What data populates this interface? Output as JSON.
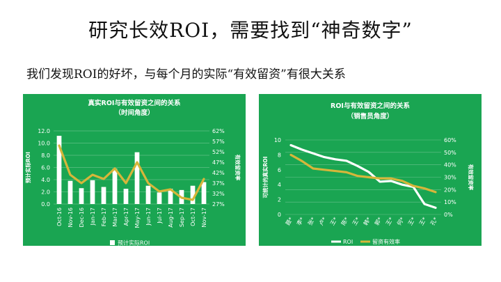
{
  "slide": {
    "title": "研究长效ROI，需要找到“神奇数字”",
    "subtitle": "我们发现ROI的好坏，与每个月的实际“有效留资”有很大关系"
  },
  "colors": {
    "panel_bg": "#1aa552",
    "bar": "#ffffff",
    "rate_line": "#d6b63a",
    "roi_line": "#ffffff",
    "grid": "#ffffff"
  },
  "chart_data": [
    {
      "type": "bar",
      "title": "真实ROI与有效留资之间的关系",
      "subtitle": "（时间角度）",
      "ylabel": "预计实际ROI",
      "y2label": "有效留资率",
      "ylim": [
        0,
        12
      ],
      "yticks": [
        "0.0",
        "2.0",
        "4.0",
        "6.0",
        "8.0",
        "10.0",
        "12.0"
      ],
      "y2lim": [
        27,
        62
      ],
      "y2ticks": [
        "27%",
        "32%",
        "37%",
        "42%",
        "47%",
        "52%",
        "57%",
        "62%"
      ],
      "categories": [
        "Oct-16",
        "Nov-16",
        "Dec-16",
        "Jan-17",
        "Feb-17",
        "Mar-17",
        "Apr-17",
        "May-17",
        "Jun-17",
        "Jul-17",
        "Aug-17",
        "Sep-17",
        "Oct-17",
        "Nov-17"
      ],
      "series": [
        {
          "name": "预计实际ROI",
          "kind": "bar",
          "axis": "left",
          "values": [
            11.2,
            3.8,
            2.6,
            3.9,
            2.8,
            5.8,
            2.5,
            8.5,
            3.0,
            1.9,
            2.5,
            2.3,
            3.0,
            3.6
          ]
        },
        {
          "name": "",
          "kind": "line",
          "axis": "right",
          "values": [
            55,
            41,
            37,
            41,
            39,
            44,
            37,
            47,
            37,
            33,
            34,
            30,
            29,
            39
          ]
        }
      ],
      "legend": {
        "position": "bottom",
        "entries": [
          "预计实际ROI"
        ]
      }
    },
    {
      "type": "line",
      "title": "ROI与有效留资之间的关系",
      "subtitle": "（销售员角度）",
      "ylabel": "可统计的真实ROI",
      "y2label": "有效留资率",
      "ylim": [
        0,
        10
      ],
      "yticks": [
        "0",
        "2",
        "4",
        "6",
        "8",
        "10"
      ],
      "y2lim": [
        0,
        60
      ],
      "y2ticks": [
        "0%",
        "10%",
        "20%",
        "30%",
        "40%",
        "50%",
        "60%"
      ],
      "categories": [
        "聂*",
        "李*",
        "张*",
        "卢*",
        "王*",
        "陈*",
        "王*",
        "韩*",
        "郭*",
        "王*",
        "何*",
        "王*",
        "王*",
        "孔*"
      ],
      "series": [
        {
          "name": "ROI",
          "axis": "left",
          "values": [
            9.3,
            8.7,
            8.2,
            7.7,
            7.4,
            7.2,
            6.5,
            5.7,
            4.4,
            4.5,
            4.0,
            3.7,
            1.4,
            0.9
          ]
        },
        {
          "name": "留资有效率",
          "axis": "right",
          "values": [
            48,
            43,
            37,
            36,
            35,
            34,
            31,
            30,
            29,
            29,
            27,
            23,
            21,
            18
          ]
        }
      ],
      "legend": {
        "position": "bottom",
        "entries": [
          "ROI",
          "留资有效率"
        ]
      }
    }
  ]
}
